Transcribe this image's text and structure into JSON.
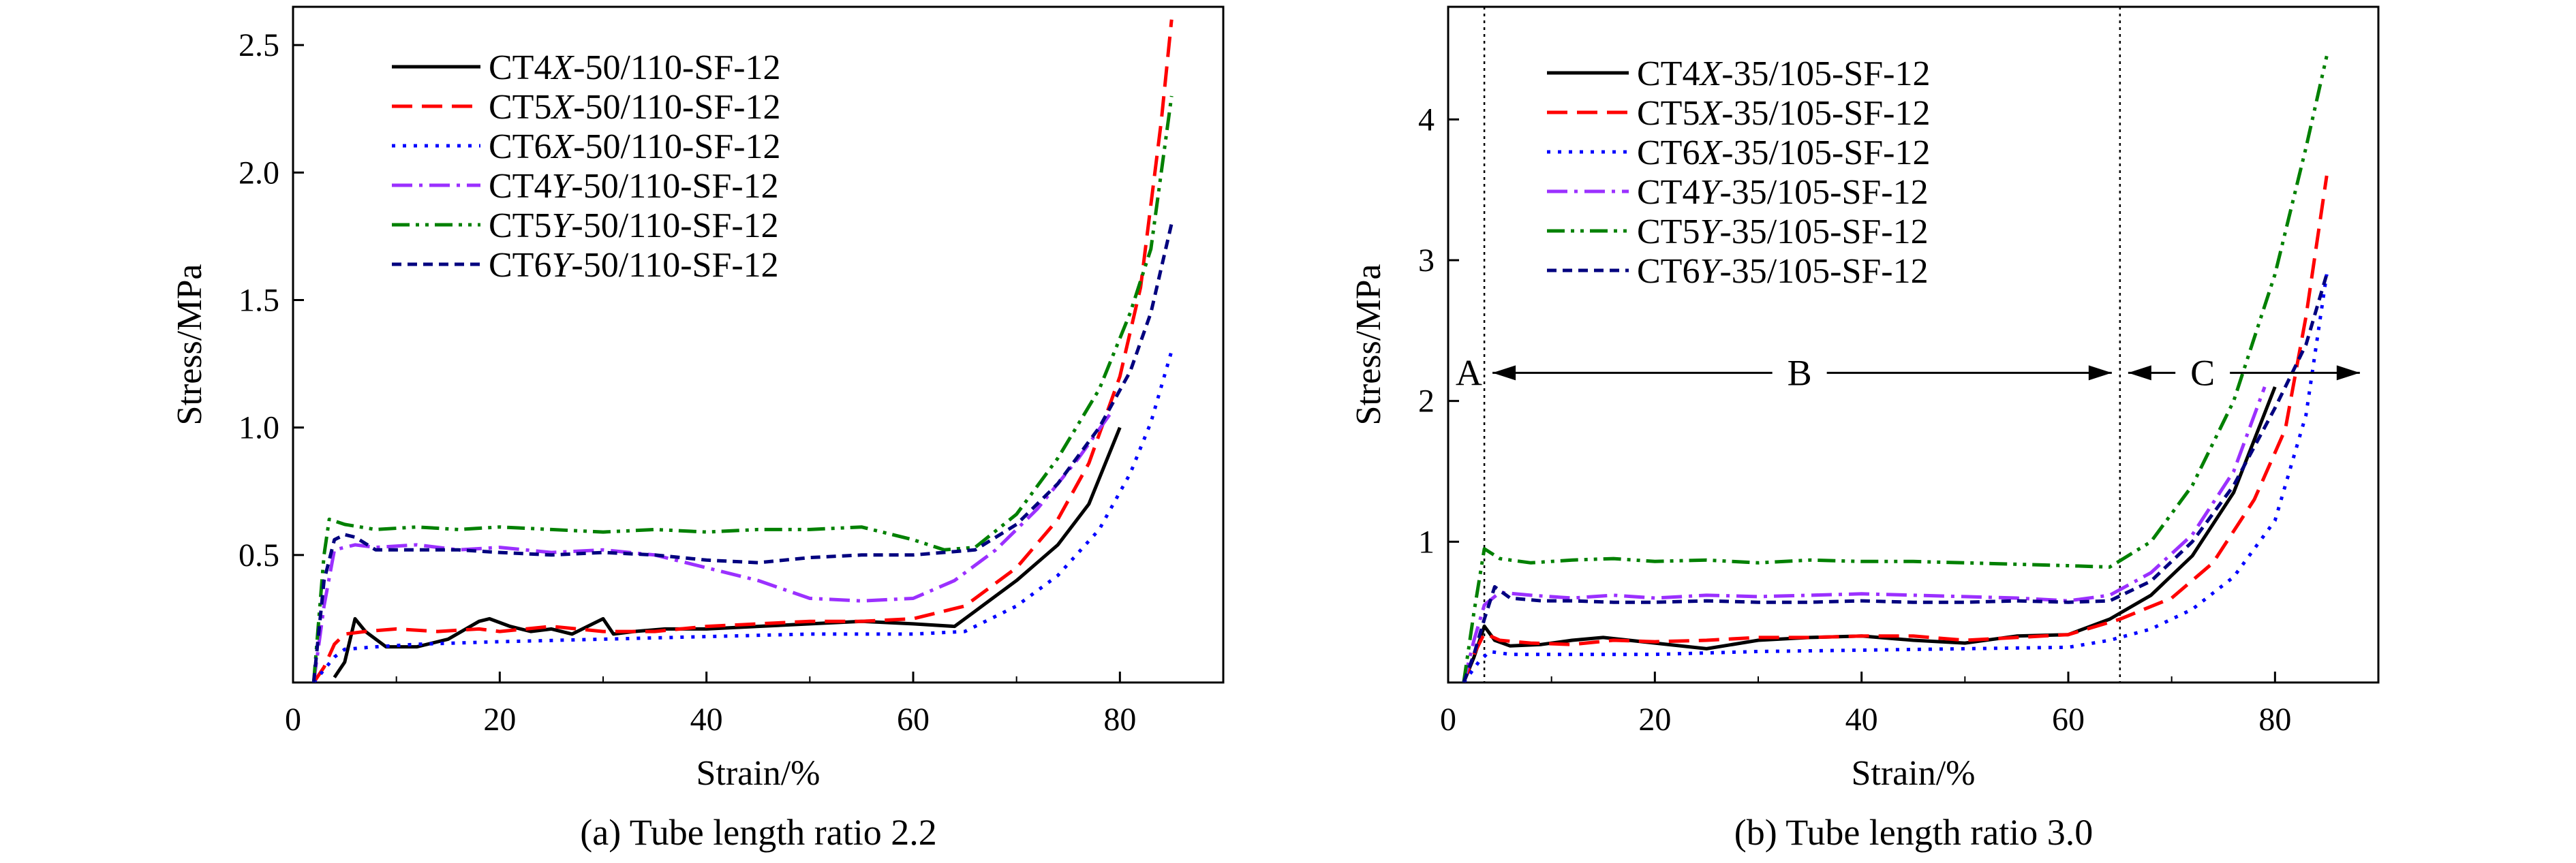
{
  "colors": {
    "black": "#000000",
    "red": "#ff0000",
    "blue": "#0000ff",
    "purple": "#9b30ff",
    "green": "#008000",
    "navy": "#00007f"
  },
  "chart_data": [
    {
      "type": "line",
      "caption": "(a) Tube length ratio 2.2",
      "xlabel": "Strain/%",
      "ylabel": "Stress/MPa",
      "xlim": [
        0,
        90
      ],
      "ylim": [
        0,
        2.65
      ],
      "xticks": [
        0,
        20,
        40,
        60,
        80
      ],
      "xtick_labels": [
        "0",
        "20",
        "40",
        "60",
        "80"
      ],
      "yticks": [
        0.5,
        1.0,
        1.5,
        2.0,
        2.5
      ],
      "ytick_labels": [
        "0.5",
        "1.0",
        "1.5",
        "2.0",
        "2.5"
      ],
      "legend_position": "top-center",
      "series": [
        {
          "name": "CT4X-50/110-SF-12",
          "prefix": "CT4",
          "letter": "X",
          "suffix": "-50/110-SF-12",
          "color": "#000000",
          "dash": "solid",
          "x": [
            4,
            5,
            6,
            7,
            9,
            12,
            15,
            18,
            19,
            21,
            23,
            25,
            27,
            29,
            30,
            31,
            33,
            36,
            40,
            45,
            50,
            55,
            60,
            64,
            66,
            70,
            74,
            77,
            80
          ],
          "y": [
            0.02,
            0.08,
            0.25,
            0.2,
            0.14,
            0.14,
            0.17,
            0.24,
            0.25,
            0.22,
            0.2,
            0.21,
            0.19,
            0.23,
            0.25,
            0.19,
            0.2,
            0.21,
            0.21,
            0.22,
            0.23,
            0.24,
            0.23,
            0.22,
            0.28,
            0.4,
            0.54,
            0.7,
            1.0
          ]
        },
        {
          "name": "CT5X-50/110-SF-12",
          "prefix": "CT5",
          "letter": "X",
          "suffix": "-50/110-SF-12",
          "color": "#ff0000",
          "dash": "dashed",
          "x": [
            2,
            3,
            4,
            5,
            7,
            10,
            14,
            18,
            20,
            25,
            30,
            35,
            40,
            45,
            50,
            55,
            60,
            65,
            70,
            74,
            77,
            80,
            82,
            84,
            85
          ],
          "y": [
            0.0,
            0.06,
            0.15,
            0.19,
            0.2,
            0.21,
            0.2,
            0.21,
            0.2,
            0.22,
            0.2,
            0.2,
            0.22,
            0.23,
            0.24,
            0.24,
            0.25,
            0.3,
            0.45,
            0.64,
            0.86,
            1.2,
            1.55,
            2.2,
            2.6
          ]
        },
        {
          "name": "CT6X-50/110-SF-12",
          "prefix": "CT6",
          "letter": "X",
          "suffix": "-50/110-SF-12",
          "color": "#0000ff",
          "dash": "dotted",
          "x": [
            2,
            3,
            4,
            5,
            8,
            12,
            20,
            30,
            40,
            50,
            60,
            65,
            70,
            74,
            78,
            81,
            83,
            85
          ],
          "y": [
            0.0,
            0.05,
            0.1,
            0.13,
            0.14,
            0.15,
            0.16,
            0.17,
            0.18,
            0.19,
            0.19,
            0.2,
            0.3,
            0.42,
            0.6,
            0.82,
            1.02,
            1.3
          ]
        },
        {
          "name": "CT4Y-50/110-SF-12",
          "prefix": "CT4",
          "letter": "Y",
          "suffix": "-50/110-SF-12",
          "color": "#9b30ff",
          "dash": "dashdot",
          "x": [
            2,
            3,
            4,
            6,
            8,
            12,
            16,
            20,
            25,
            30,
            35,
            40,
            45,
            50,
            55,
            60,
            64,
            68,
            72,
            76,
            79
          ],
          "y": [
            0.0,
            0.3,
            0.52,
            0.54,
            0.53,
            0.54,
            0.52,
            0.53,
            0.51,
            0.52,
            0.5,
            0.45,
            0.4,
            0.33,
            0.32,
            0.33,
            0.4,
            0.52,
            0.68,
            0.88,
            1.05
          ]
        },
        {
          "name": "CT5Y-50/110-SF-12",
          "prefix": "CT5",
          "letter": "Y",
          "suffix": "-50/110-SF-12",
          "color": "#008000",
          "dash": "dashdotdot",
          "x": [
            2,
            3,
            3.5,
            5,
            8,
            12,
            16,
            20,
            25,
            30,
            35,
            40,
            45,
            50,
            55,
            60,
            63,
            66,
            70,
            74,
            78,
            81,
            83,
            85
          ],
          "y": [
            0.0,
            0.5,
            0.64,
            0.62,
            0.6,
            0.61,
            0.6,
            0.61,
            0.6,
            0.59,
            0.6,
            0.59,
            0.6,
            0.6,
            0.61,
            0.56,
            0.52,
            0.53,
            0.66,
            0.88,
            1.15,
            1.45,
            1.7,
            2.3
          ]
        },
        {
          "name": "CT6Y-50/110-SF-12",
          "prefix": "CT6",
          "letter": "Y",
          "suffix": "-50/110-SF-12",
          "color": "#00007f",
          "dash": "shortdash",
          "x": [
            2,
            3,
            4,
            5,
            6,
            8,
            12,
            16,
            20,
            25,
            30,
            35,
            40,
            45,
            50,
            55,
            60,
            66,
            70,
            74,
            78,
            81,
            83,
            85
          ],
          "y": [
            0.0,
            0.4,
            0.56,
            0.58,
            0.57,
            0.52,
            0.52,
            0.52,
            0.51,
            0.5,
            0.51,
            0.5,
            0.48,
            0.47,
            0.49,
            0.5,
            0.5,
            0.52,
            0.62,
            0.78,
            1.0,
            1.22,
            1.45,
            1.8
          ]
        }
      ]
    },
    {
      "type": "line",
      "caption": "(b) Tube length ratio 3.0",
      "xlabel": "Strain/%",
      "ylabel": "Stress/MPa",
      "xlim": [
        0,
        90
      ],
      "ylim": [
        0,
        4.8
      ],
      "xticks": [
        0,
        20,
        40,
        60,
        80
      ],
      "xtick_labels": [
        "0",
        "20",
        "40",
        "60",
        "80"
      ],
      "yticks": [
        1,
        2,
        3,
        4
      ],
      "ytick_labels": [
        "1",
        "2",
        "3",
        "4"
      ],
      "legend_position": "top-left",
      "vlines": [
        3.5,
        65
      ],
      "regions": [
        {
          "label": "A",
          "x": 2,
          "y": 2.2
        },
        {
          "label": "B",
          "x": 34,
          "y": 2.2,
          "from": 3.5,
          "to": 65
        },
        {
          "label": "C",
          "x": 73,
          "y": 2.2,
          "from": 65,
          "to": 89
        }
      ],
      "series": [
        {
          "name": "CT4X-35/105-SF-12",
          "prefix": "CT4",
          "letter": "X",
          "suffix": "-35/105-SF-12",
          "color": "#000000",
          "dash": "solid",
          "x": [
            1.5,
            2.5,
            3.5,
            4.5,
            6,
            9,
            12,
            15,
            20,
            25,
            30,
            35,
            40,
            45,
            50,
            55,
            60,
            64,
            68,
            72,
            76,
            80
          ],
          "y": [
            0.0,
            0.18,
            0.4,
            0.3,
            0.26,
            0.27,
            0.3,
            0.32,
            0.28,
            0.24,
            0.3,
            0.32,
            0.33,
            0.3,
            0.28,
            0.33,
            0.34,
            0.45,
            0.62,
            0.9,
            1.35,
            2.1
          ]
        },
        {
          "name": "CT5X-35/105-SF-12",
          "prefix": "CT5",
          "letter": "X",
          "suffix": "-35/105-SF-12",
          "color": "#ff0000",
          "dash": "dashed",
          "x": [
            1.5,
            2.5,
            3.5,
            5,
            8,
            12,
            16,
            20,
            25,
            30,
            35,
            40,
            45,
            50,
            55,
            60,
            65,
            70,
            74,
            78,
            81,
            83,
            85
          ],
          "y": [
            0.0,
            0.2,
            0.35,
            0.3,
            0.28,
            0.27,
            0.3,
            0.29,
            0.3,
            0.32,
            0.32,
            0.33,
            0.33,
            0.3,
            0.32,
            0.34,
            0.45,
            0.6,
            0.85,
            1.3,
            1.8,
            2.6,
            3.6
          ]
        },
        {
          "name": "CT6X-35/105-SF-12",
          "prefix": "CT6",
          "letter": "X",
          "suffix": "-35/105-SF-12",
          "color": "#0000ff",
          "dash": "dotted",
          "x": [
            1.5,
            3,
            4,
            6,
            10,
            20,
            30,
            40,
            50,
            60,
            64,
            68,
            72,
            76,
            80,
            83,
            85
          ],
          "y": [
            0.0,
            0.15,
            0.22,
            0.2,
            0.2,
            0.2,
            0.22,
            0.23,
            0.24,
            0.25,
            0.3,
            0.38,
            0.52,
            0.75,
            1.15,
            1.9,
            2.9
          ]
        },
        {
          "name": "CT4Y-35/105-SF-12",
          "prefix": "CT4",
          "letter": "Y",
          "suffix": "-35/105-SF-12",
          "color": "#9b30ff",
          "dash": "dashdot",
          "x": [
            1.5,
            2.5,
            3.5,
            5,
            8,
            12,
            16,
            20,
            25,
            30,
            35,
            40,
            45,
            50,
            55,
            60,
            64,
            68,
            72,
            76,
            79
          ],
          "y": [
            0.0,
            0.3,
            0.55,
            0.64,
            0.62,
            0.6,
            0.62,
            0.6,
            0.62,
            0.61,
            0.62,
            0.63,
            0.62,
            0.61,
            0.6,
            0.58,
            0.62,
            0.78,
            1.05,
            1.5,
            2.1
          ]
        },
        {
          "name": "CT5Y-35/105-SF-12",
          "prefix": "CT5",
          "letter": "Y",
          "suffix": "-35/105-SF-12",
          "color": "#008000",
          "dash": "dashdotdot",
          "x": [
            1.5,
            2.5,
            3.5,
            5,
            8,
            12,
            16,
            20,
            25,
            30,
            35,
            40,
            45,
            50,
            55,
            60,
            64,
            68,
            72,
            76,
            80,
            83,
            85
          ],
          "y": [
            0.0,
            0.5,
            0.95,
            0.88,
            0.85,
            0.87,
            0.88,
            0.86,
            0.87,
            0.85,
            0.87,
            0.86,
            0.86,
            0.85,
            0.84,
            0.83,
            0.82,
            1.0,
            1.4,
            2.0,
            2.9,
            3.8,
            4.45
          ]
        },
        {
          "name": "CT6Y-35/105-SF-12",
          "prefix": "CT6",
          "letter": "Y",
          "suffix": "-35/105-SF-12",
          "color": "#00007f",
          "dash": "shortdash",
          "x": [
            1.5,
            2.5,
            3.5,
            4.5,
            6,
            9,
            12,
            16,
            20,
            25,
            30,
            35,
            40,
            45,
            50,
            55,
            60,
            64,
            68,
            72,
            76,
            80,
            83,
            85
          ],
          "y": [
            0.0,
            0.2,
            0.45,
            0.68,
            0.6,
            0.58,
            0.58,
            0.57,
            0.57,
            0.58,
            0.57,
            0.57,
            0.58,
            0.57,
            0.57,
            0.58,
            0.57,
            0.58,
            0.72,
            1.0,
            1.4,
            1.95,
            2.4,
            2.9
          ]
        }
      ]
    }
  ]
}
